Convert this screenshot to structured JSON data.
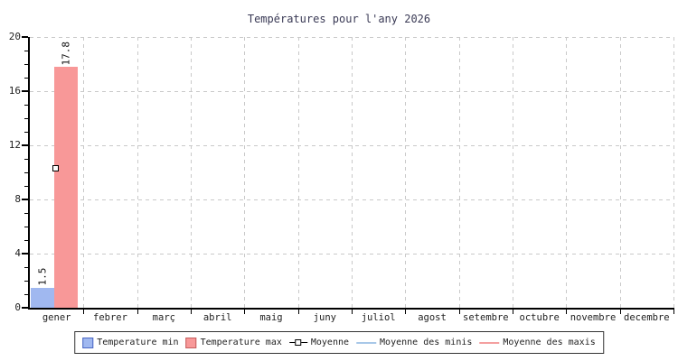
{
  "title": "Températures pour l'any 2026",
  "colors": {
    "bar_min": "#a0b8f0",
    "bar_min_edge": "#4a66c4",
    "bar_max": "#f89898",
    "bar_max_edge": "#c45c5c",
    "line_minis": "#a8c8e8",
    "line_maxis": "#f4a0a0",
    "grid": "#c9c9c9",
    "axis": "#000000",
    "text": "#222222",
    "title_color": "#3a3a55"
  },
  "chart_data": {
    "type": "bar",
    "title": "Températures pour l'any 2026",
    "categories": [
      "gener",
      "febrer",
      "març",
      "abril",
      "maig",
      "juny",
      "juliol",
      "agost",
      "setembre",
      "octubre",
      "novembre",
      "decembre"
    ],
    "series": [
      {
        "name": "Temperature min",
        "kind": "bar",
        "color_key": "bar_min",
        "values": [
          1.5,
          null,
          null,
          null,
          null,
          null,
          null,
          null,
          null,
          null,
          null,
          null
        ]
      },
      {
        "name": "Temperature max",
        "kind": "bar",
        "color_key": "bar_max",
        "values": [
          17.8,
          null,
          null,
          null,
          null,
          null,
          null,
          null,
          null,
          null,
          null,
          null
        ]
      },
      {
        "name": "Moyenne",
        "kind": "point",
        "color_key": "axis",
        "values": [
          10.3,
          null,
          null,
          null,
          null,
          null,
          null,
          null,
          null,
          null,
          null,
          null
        ]
      },
      {
        "name": "Moyenne des minis",
        "kind": "line",
        "color_key": "line_minis",
        "values": []
      },
      {
        "name": "Moyenne des maxis",
        "kind": "line",
        "color_key": "line_maxis",
        "values": []
      }
    ],
    "ylim": [
      0,
      20
    ],
    "yticks": [
      0,
      4,
      8,
      12,
      16,
      20
    ],
    "minor_tick_step": 1,
    "bar_value_labels": [
      "1.5",
      "17.8"
    ],
    "grid": true,
    "legend_position": "bottom"
  }
}
